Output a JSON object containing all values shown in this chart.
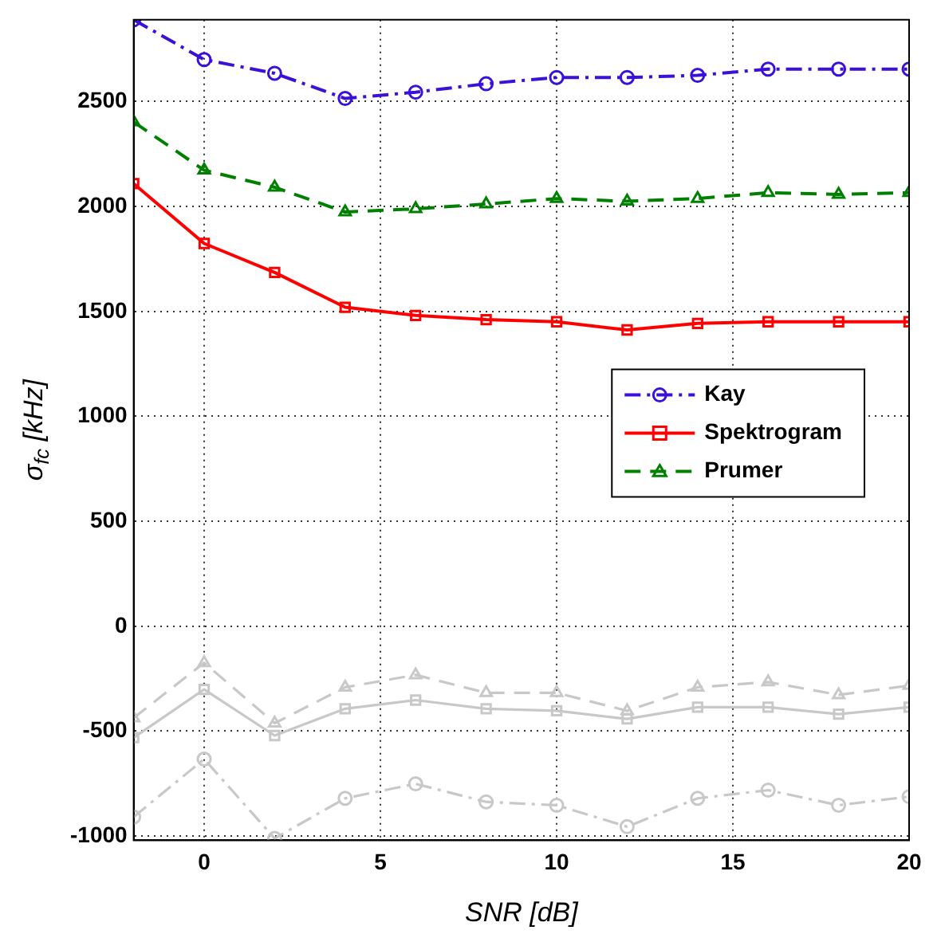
{
  "chart_data": {
    "type": "line",
    "xlabel": "SNR [dB]",
    "ylabel": "σ$_{fc}$ [kHz]",
    "x": [
      -2,
      0,
      2,
      4,
      6,
      8,
      10,
      12,
      14,
      16,
      18,
      20
    ],
    "series": [
      {
        "name": "Kay",
        "color": "#3b10d8",
        "line_style": "dashdot",
        "marker": "circle",
        "values": [
          2890,
          2700,
          2635,
          2515,
          2545,
          2585,
          2615,
          2615,
          2625,
          2655,
          2655,
          2655
        ]
      },
      {
        "name": "Spektrogram",
        "color": "#ff0000",
        "line_style": "solid",
        "marker": "square",
        "values": [
          2109,
          1824,
          1686,
          1520,
          1481,
          1461,
          1451,
          1412,
          1443,
          1451,
          1451,
          1451
        ]
      },
      {
        "name": "Prumer",
        "color": "#008000",
        "line_style": "dashed",
        "marker": "triangle",
        "values": [
          2403,
          2173,
          2092,
          1974,
          1989,
          2012,
          2038,
          2025,
          2038,
          2066,
          2058,
          2066
        ]
      },
      {
        "color": "#c8c8c8",
        "line_style": "dashed",
        "marker": "triangle",
        "values": [
          -437,
          -174,
          -462,
          -291,
          -232,
          -317,
          -317,
          -403,
          -291,
          -266,
          -327,
          -283
        ]
      },
      {
        "color": "#c8c8c8",
        "line_style": "solid",
        "marker": "square",
        "values": [
          -531,
          -301,
          -521,
          -393,
          -352,
          -393,
          -403,
          -442,
          -386,
          -386,
          -419,
          -386
        ]
      },
      {
        "color": "#c8c8c8",
        "line_style": "dashdot",
        "marker": "circle",
        "values": [
          -909,
          -633,
          -1011,
          -820,
          -751,
          -837,
          -853,
          -955,
          -820,
          -781,
          -853,
          -812
        ]
      }
    ],
    "xlim": [
      -2,
      20
    ],
    "xticks": [
      0,
      5,
      10,
      15,
      20
    ],
    "ylim": [
      -1020,
      2890
    ],
    "yticks": [
      -1000,
      -500,
      0,
      500,
      1000,
      1500,
      2000,
      2500
    ],
    "grid": true,
    "legend": "right"
  }
}
